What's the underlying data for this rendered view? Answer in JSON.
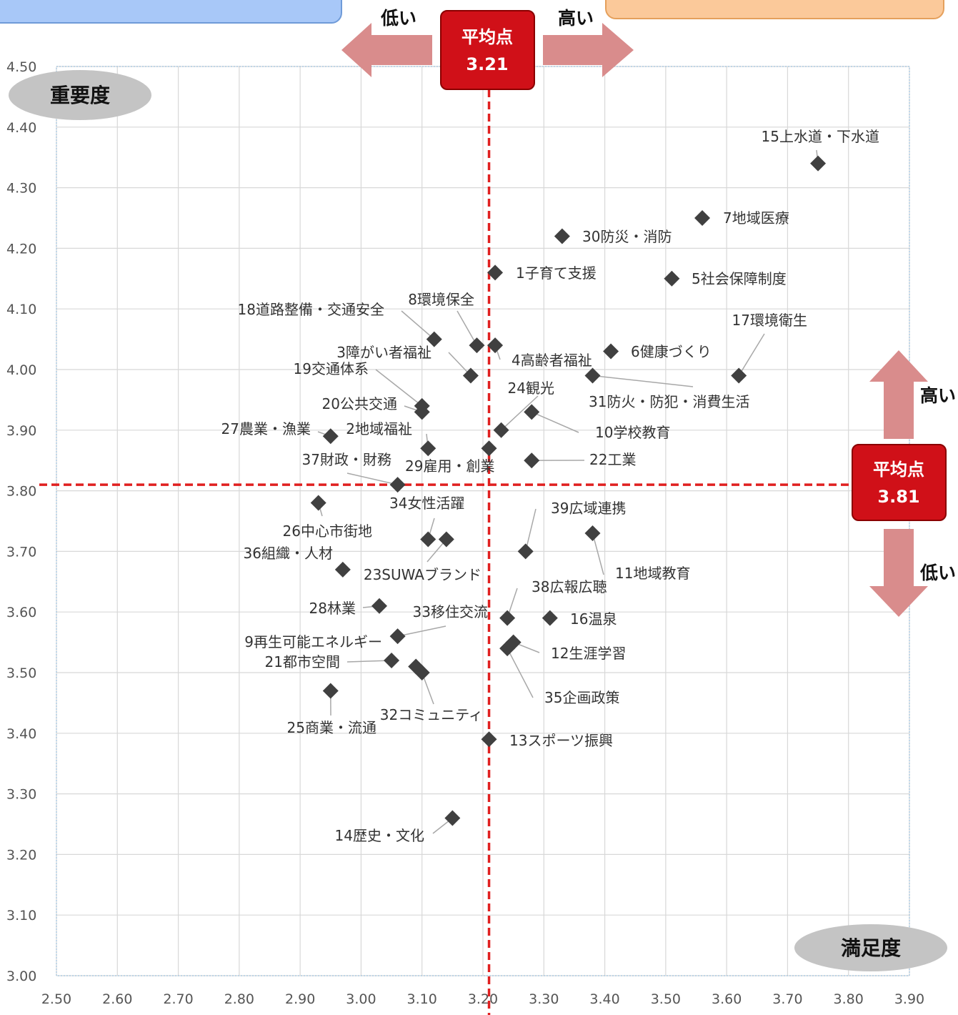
{
  "chart_data": {
    "type": "scatter",
    "xlabel": "満足度",
    "ylabel": "重要度",
    "xlim": [
      2.5,
      3.9
    ],
    "ylim": [
      3.0,
      4.5
    ],
    "x_ticks": [
      "2.50",
      "2.60",
      "2.70",
      "2.80",
      "2.90",
      "3.00",
      "3.10",
      "3.20",
      "3.30",
      "3.40",
      "3.50",
      "3.60",
      "3.70",
      "3.80",
      "3.90"
    ],
    "y_ticks": [
      "3.00",
      "3.10",
      "3.20",
      "3.30",
      "3.40",
      "3.50",
      "3.60",
      "3.70",
      "3.80",
      "3.90",
      "4.00",
      "4.10",
      "4.20",
      "4.30",
      "4.40",
      "4.50"
    ],
    "grid": true,
    "marker_color": "#404040",
    "avg_color": "#e02020",
    "arrow_color": "#d98c8c",
    "avg_x": {
      "label": "平均点",
      "value": 3.21,
      "text": "3.21"
    },
    "avg_y": {
      "label": "平均点",
      "value": 3.81,
      "text": "3.81"
    },
    "x_arrow_left": "低い",
    "x_arrow_right": "高い",
    "y_arrow_up": "高い",
    "y_arrow_down": "低い",
    "points": [
      {
        "label": "1子育て支援",
        "x": 3.22,
        "y": 4.16
      },
      {
        "label": "2地域福祉",
        "x": 3.11,
        "y": 3.87
      },
      {
        "label": "3障がい者福祉",
        "x": 3.18,
        "y": 3.99
      },
      {
        "label": "4高齢者福祉",
        "x": 3.22,
        "y": 4.04
      },
      {
        "label": "5社会保障制度",
        "x": 3.51,
        "y": 4.15
      },
      {
        "label": "6健康づくり",
        "x": 3.41,
        "y": 4.03
      },
      {
        "label": "7地域医療",
        "x": 3.56,
        "y": 4.25
      },
      {
        "label": "8環境保全",
        "x": 3.19,
        "y": 4.04
      },
      {
        "label": "9再生可能エネルギー",
        "x": 3.06,
        "y": 3.56
      },
      {
        "label": "10学校教育",
        "x": 3.28,
        "y": 3.93
      },
      {
        "label": "11地域教育",
        "x": 3.38,
        "y": 3.73
      },
      {
        "label": "12生涯学習",
        "x": 3.25,
        "y": 3.55
      },
      {
        "label": "13スポーツ振興",
        "x": 3.21,
        "y": 3.39
      },
      {
        "label": "14歴史・文化",
        "x": 3.15,
        "y": 3.26
      },
      {
        "label": "15上水道・下水道",
        "x": 3.75,
        "y": 4.34
      },
      {
        "label": "16温泉",
        "x": 3.31,
        "y": 3.59
      },
      {
        "label": "17環境衛生",
        "x": 3.62,
        "y": 3.99
      },
      {
        "label": "18道路整備・交通安全",
        "x": 3.12,
        "y": 4.05
      },
      {
        "label": "19交通体系",
        "x": 3.1,
        "y": 3.94
      },
      {
        "label": "20公共交通",
        "x": 3.1,
        "y": 3.93
      },
      {
        "label": "21都市空間",
        "x": 3.05,
        "y": 3.52
      },
      {
        "label": "22工業",
        "x": 3.28,
        "y": 3.85
      },
      {
        "label": "23SUWAブランド",
        "x": 3.14,
        "y": 3.72
      },
      {
        "label": "24観光",
        "x": 3.23,
        "y": 3.9
      },
      {
        "label": "25商業・流通",
        "x": 2.95,
        "y": 3.47
      },
      {
        "label": "26中心市街地",
        "x": 2.93,
        "y": 3.78
      },
      {
        "label": "27農業・漁業",
        "x": 2.95,
        "y": 3.89
      },
      {
        "label": "28林業",
        "x": 3.03,
        "y": 3.61
      },
      {
        "label": "29雇用・創業",
        "x": 3.21,
        "y": 3.87
      },
      {
        "label": "30防災・消防",
        "x": 3.33,
        "y": 4.22
      },
      {
        "label": "31防火・防犯・消費生活",
        "x": 3.38,
        "y": 3.99
      },
      {
        "label": "32コミュニティ",
        "x": 3.1,
        "y": 3.5
      },
      {
        "label": "33移住交流",
        "x": 3.09,
        "y": 3.51
      },
      {
        "label": "34女性活躍",
        "x": 3.11,
        "y": 3.72
      },
      {
        "label": "35企画政策",
        "x": 3.24,
        "y": 3.54
      },
      {
        "label": "36組織・人材",
        "x": 2.97,
        "y": 3.67
      },
      {
        "label": "37財政・財務",
        "x": 3.06,
        "y": 3.81
      },
      {
        "label": "38広報広聴",
        "x": 3.24,
        "y": 3.59
      },
      {
        "label": "39広域連携",
        "x": 3.27,
        "y": 3.7
      }
    ]
  }
}
